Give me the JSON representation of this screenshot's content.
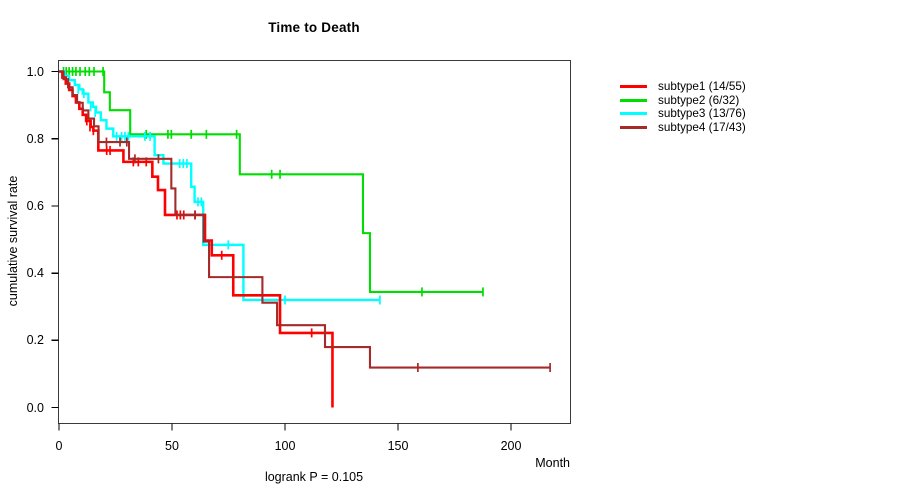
{
  "title": "Time to Death",
  "footer": "logrank P = 0.105",
  "x_axis": {
    "label": "Month",
    "tick_labels": [
      "0",
      "50",
      "100",
      "150",
      "200"
    ]
  },
  "y_axis": {
    "label": "cumulative survival rate",
    "tick_labels": [
      "0.0",
      "0.2",
      "0.4",
      "0.6",
      "0.8",
      "1.0"
    ]
  },
  "legend": {
    "items": [
      {
        "label": "subtype1 (14/55)",
        "color": "#ff0000"
      },
      {
        "label": "subtype2 (6/32)",
        "color": "#00dd00"
      },
      {
        "label": "subtype3 (13/76)",
        "color": "#00ffff"
      },
      {
        "label": "subtype4 (17/43)",
        "color": "#a52a2a"
      }
    ]
  },
  "chart_data": {
    "type": "line",
    "variant": "kaplan_meier_step",
    "title": "Time to Death",
    "xlabel": "Month",
    "ylabel": "cumulative survival rate",
    "xlim": [
      0,
      226
    ],
    "ylim": [
      0,
      1
    ],
    "x_ticks": [
      0,
      50,
      100,
      150,
      200
    ],
    "y_ticks": [
      0.0,
      0.2,
      0.4,
      0.6,
      0.8,
      1.0
    ],
    "grid": false,
    "legend_position": "right-outside",
    "annotation": "logrank P = 0.105",
    "series": [
      {
        "name": "subtype1 (14/55)",
        "color": "#ff0000",
        "steps": [
          [
            0,
            1.0
          ],
          [
            1.5,
            0.982
          ],
          [
            3,
            0.964
          ],
          [
            4.5,
            0.945
          ],
          [
            6,
            0.927
          ],
          [
            7.5,
            0.908
          ],
          [
            9,
            0.889
          ],
          [
            10.5,
            0.871
          ],
          [
            12,
            0.853
          ],
          [
            14,
            0.835
          ],
          [
            15.2,
            0.824
          ],
          [
            17.4,
            0.765
          ],
          [
            28.5,
            0.731
          ],
          [
            41.3,
            0.687
          ],
          [
            43.8,
            0.647
          ],
          [
            46.9,
            0.573
          ],
          [
            64.6,
            0.497
          ],
          [
            67.6,
            0.453
          ],
          [
            77.1,
            0.334
          ],
          [
            97.8,
            0.222
          ],
          [
            121,
            0.0
          ]
        ],
        "censors": [
          [
            12.3,
            0.853
          ],
          [
            13.7,
            0.835
          ],
          [
            15.2,
            0.824
          ],
          [
            21.1,
            0.765
          ],
          [
            22.6,
            0.765
          ],
          [
            32.9,
            0.731
          ],
          [
            35.1,
            0.731
          ],
          [
            38.6,
            0.731
          ],
          [
            52.2,
            0.573
          ],
          [
            53.7,
            0.573
          ],
          [
            55.2,
            0.573
          ],
          [
            60.2,
            0.573
          ],
          [
            72,
            0.453
          ],
          [
            111.8,
            0.222
          ]
        ]
      },
      {
        "name": "subtype2 (6/32)",
        "color": "#00dd00",
        "steps": [
          [
            0,
            1.0
          ],
          [
            20,
            0.938
          ],
          [
            22.5,
            0.885
          ],
          [
            31.5,
            0.813
          ],
          [
            80,
            0.694
          ],
          [
            134.5,
            0.519
          ],
          [
            137.6,
            0.344
          ],
          [
            187.6,
            0.344
          ]
        ],
        "censors": [
          [
            2,
            1.0
          ],
          [
            3.2,
            1.0
          ],
          [
            4.5,
            1.0
          ],
          [
            6,
            1.0
          ],
          [
            7.5,
            1.0
          ],
          [
            9.3,
            1.0
          ],
          [
            11.6,
            1.0
          ],
          [
            13.4,
            1.0
          ],
          [
            15.5,
            1.0
          ],
          [
            19.5,
            1.0
          ],
          [
            38.6,
            0.813
          ],
          [
            48.2,
            0.813
          ],
          [
            49.7,
            0.813
          ],
          [
            58.5,
            0.813
          ],
          [
            65.2,
            0.813
          ],
          [
            78.6,
            0.813
          ],
          [
            94.1,
            0.694
          ],
          [
            97.8,
            0.694
          ],
          [
            160.6,
            0.344
          ],
          [
            187.6,
            0.344
          ]
        ]
      },
      {
        "name": "subtype3 (13/76)",
        "color": "#00ffff",
        "steps": [
          [
            0,
            1.0
          ],
          [
            2.5,
            0.987
          ],
          [
            4.5,
            0.974
          ],
          [
            7,
            0.96
          ],
          [
            9,
            0.947
          ],
          [
            10.5,
            0.934
          ],
          [
            13,
            0.908
          ],
          [
            15,
            0.895
          ],
          [
            16.4,
            0.878
          ],
          [
            18.5,
            0.855
          ],
          [
            21,
            0.83
          ],
          [
            24,
            0.807
          ],
          [
            42.3,
            0.751
          ],
          [
            46.2,
            0.726
          ],
          [
            58.5,
            0.657
          ],
          [
            60,
            0.612
          ],
          [
            63.8,
            0.484
          ],
          [
            81.6,
            0.32
          ],
          [
            142,
            0.32
          ]
        ],
        "censors": [
          [
            8.5,
            0.947
          ],
          [
            11,
            0.934
          ],
          [
            14,
            0.895
          ],
          [
            16,
            0.878
          ],
          [
            25.5,
            0.807
          ],
          [
            27.7,
            0.807
          ],
          [
            29.2,
            0.807
          ],
          [
            30.7,
            0.807
          ],
          [
            38,
            0.807
          ],
          [
            40.3,
            0.807
          ],
          [
            53.4,
            0.726
          ],
          [
            55,
            0.726
          ],
          [
            56.6,
            0.726
          ],
          [
            61.5,
            0.612
          ],
          [
            63,
            0.612
          ],
          [
            74.9,
            0.484
          ],
          [
            100,
            0.32
          ],
          [
            142,
            0.32
          ]
        ]
      },
      {
        "name": "subtype4 (17/43)",
        "color": "#a52a2a",
        "steps": [
          [
            0,
            1.0
          ],
          [
            2,
            0.977
          ],
          [
            4,
            0.953
          ],
          [
            6,
            0.93
          ],
          [
            8,
            0.907
          ],
          [
            10.5,
            0.884
          ],
          [
            13,
            0.86
          ],
          [
            15.5,
            0.837
          ],
          [
            17.5,
            0.79
          ],
          [
            31,
            0.74
          ],
          [
            49.7,
            0.652
          ],
          [
            51.5,
            0.573
          ],
          [
            64,
            0.494
          ],
          [
            66.4,
            0.388
          ],
          [
            90,
            0.312
          ],
          [
            96.5,
            0.245
          ],
          [
            117.7,
            0.18
          ],
          [
            137.6,
            0.119
          ],
          [
            217.3,
            0.119
          ]
        ],
        "censors": [
          [
            21,
            0.79
          ],
          [
            27,
            0.79
          ],
          [
            30,
            0.79
          ],
          [
            33.6,
            0.74
          ],
          [
            44,
            0.74
          ],
          [
            60.2,
            0.573
          ],
          [
            158.8,
            0.119
          ],
          [
            217.3,
            0.119
          ]
        ]
      }
    ]
  }
}
